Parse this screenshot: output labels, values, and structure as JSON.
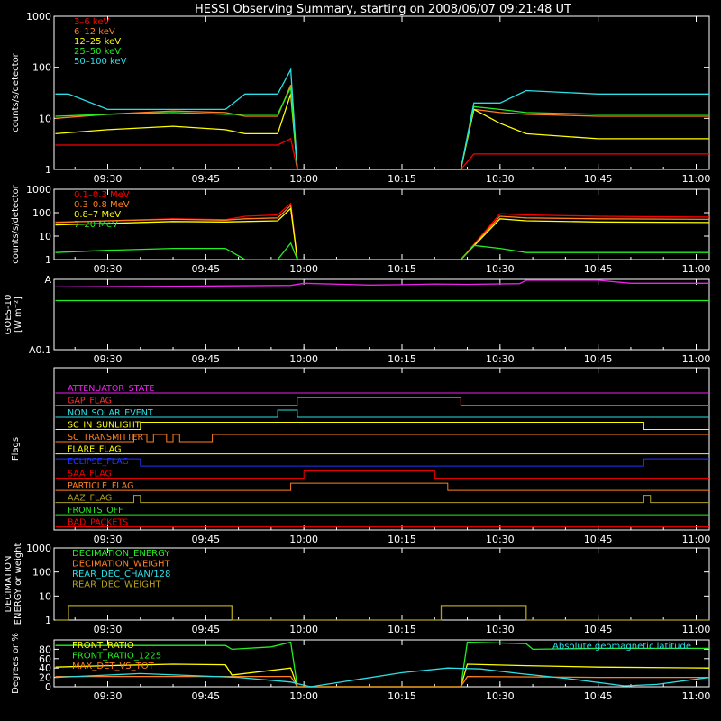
{
  "page_title": "HESSI Observing Summary, starting on 2008/06/07 09:21:48 UT",
  "colors": {
    "background": "#000000",
    "axes": "#ffffff",
    "red": "#ff0000",
    "orange": "#ff7f1f",
    "yellow": "#ffff00",
    "green": "#22ee22",
    "cyan": "#2ae0e6",
    "magenta": "#ee22ee",
    "blue": "#2233ff",
    "olive": "#b0a020",
    "dark_orange": "#e06a10"
  },
  "chart_data": [
    {
      "id": "count_rates_low",
      "type": "line",
      "ylabel": "counts/s/detector",
      "yscale": "log",
      "ylim": [
        1,
        1000
      ],
      "ytick_labels": [
        "1",
        "10",
        "100",
        "1000"
      ],
      "xlim": [
        "09:21:48",
        "11:02:00"
      ],
      "xtick_labels": [
        "09:30",
        "09:45",
        "10:00",
        "10:15",
        "10:30",
        "10:45",
        "11:00"
      ],
      "legend": "top-left",
      "series": [
        {
          "name": "3–6 keV",
          "color": "#ff0000",
          "x": [
            "09:22",
            "09:30",
            "09:40",
            "09:48",
            "09:51",
            "09:56",
            "09:58",
            "09:59",
            "10:24",
            "10:26",
            "10:30",
            "10:34",
            "10:45",
            "11:02"
          ],
          "y": [
            3,
            3,
            3,
            3,
            3,
            3,
            4,
            1,
            1,
            2,
            2,
            2,
            2,
            2
          ]
        },
        {
          "name": "6–12 keV",
          "color": "#ff7f1f",
          "x": [
            "09:22",
            "09:30",
            "09:40",
            "09:48",
            "09:51",
            "09:56",
            "09:58",
            "09:59",
            "10:24",
            "10:26",
            "10:30",
            "10:34",
            "10:45",
            "11:02"
          ],
          "y": [
            10,
            12,
            14,
            13,
            11,
            11,
            45,
            1,
            1,
            15,
            13,
            12,
            11,
            11
          ]
        },
        {
          "name": "12–25 keV",
          "color": "#ffff00",
          "x": [
            "09:22",
            "09:30",
            "09:40",
            "09:48",
            "09:51",
            "09:56",
            "09:58",
            "09:59",
            "10:24",
            "10:26",
            "10:30",
            "10:34",
            "10:45",
            "11:02"
          ],
          "y": [
            5,
            6,
            7,
            6,
            5,
            5,
            30,
            1,
            1,
            15,
            8,
            5,
            4,
            4
          ]
        },
        {
          "name": "25–50 keV",
          "color": "#22ee22",
          "x": [
            "09:22",
            "09:30",
            "09:40",
            "09:48",
            "09:51",
            "09:56",
            "09:58",
            "09:59",
            "10:24",
            "10:26",
            "10:30",
            "10:34",
            "10:45",
            "11:02"
          ],
          "y": [
            11,
            12,
            13,
            12,
            12,
            12,
            40,
            1,
            1,
            17,
            15,
            13,
            12,
            12
          ]
        },
        {
          "name": "50–100 keV",
          "color": "#2ae0e6",
          "x": [
            "09:22",
            "09:24",
            "09:30",
            "09:40",
            "09:48",
            "09:51",
            "09:56",
            "09:58",
            "09:59",
            "10:24",
            "10:26",
            "10:30",
            "10:34",
            "10:45",
            "11:02"
          ],
          "y": [
            30,
            30,
            15,
            15,
            15,
            30,
            30,
            90,
            1,
            1,
            20,
            20,
            35,
            30,
            30
          ]
        }
      ]
    },
    {
      "id": "count_rates_high",
      "type": "line",
      "ylabel": "counts/s/detector",
      "yscale": "log",
      "ylim": [
        1,
        1000
      ],
      "ytick_labels": [
        "1",
        "10",
        "100",
        "1000"
      ],
      "xlim": [
        "09:21:48",
        "11:02:00"
      ],
      "xtick_labels": [
        "09:30",
        "09:45",
        "10:00",
        "10:15",
        "10:30",
        "10:45",
        "11:00"
      ],
      "legend": "top-left",
      "series": [
        {
          "name": "0.1–0.3 MeV",
          "color": "#ff0000",
          "x": [
            "09:22",
            "09:30",
            "09:40",
            "09:48",
            "09:51",
            "09:56",
            "09:58",
            "09:59",
            "10:24",
            "10:30",
            "10:34",
            "10:45",
            "11:02"
          ],
          "y": [
            40,
            45,
            55,
            50,
            70,
            80,
            250,
            1,
            1,
            90,
            80,
            70,
            65
          ]
        },
        {
          "name": "0.3–0.8 MeV",
          "color": "#ff7f1f",
          "x": [
            "09:22",
            "09:30",
            "09:40",
            "09:48",
            "09:51",
            "09:56",
            "09:58",
            "09:59",
            "10:24",
            "10:30",
            "10:34",
            "10:45",
            "11:02"
          ],
          "y": [
            38,
            45,
            52,
            48,
            55,
            60,
            200,
            1,
            1,
            70,
            60,
            55,
            52
          ]
        },
        {
          "name": "0.8–7 MeV",
          "color": "#ffff00",
          "x": [
            "09:22",
            "09:30",
            "09:40",
            "09:48",
            "09:51",
            "09:56",
            "09:58",
            "09:59",
            "10:24",
            "10:30",
            "10:34",
            "10:45",
            "11:02"
          ],
          "y": [
            30,
            35,
            42,
            40,
            42,
            45,
            150,
            1,
            1,
            55,
            45,
            40,
            38
          ]
        },
        {
          "name": "7–20 MeV",
          "color": "#22ee22",
          "x": [
            "09:22",
            "09:30",
            "09:40",
            "09:48",
            "09:51",
            "09:56",
            "09:58",
            "09:59",
            "10:24",
            "10:26",
            "10:30",
            "10:34",
            "10:45",
            "11:02"
          ],
          "y": [
            2,
            2.5,
            3,
            3,
            1,
            1,
            5,
            1,
            1,
            4,
            3,
            2,
            2,
            2
          ]
        }
      ]
    },
    {
      "id": "goes",
      "type": "line",
      "ylabel": "GOES-10",
      "ylabel2": "[W m⁻²]",
      "yscale": "log",
      "ylim": [
        0.1,
        1
      ],
      "ytick_labels": [
        "A0.1",
        "A"
      ],
      "xlim": [
        "09:21:48",
        "11:02:00"
      ],
      "xtick_labels": [
        "09:30",
        "09:45",
        "10:00",
        "10:15",
        "10:30",
        "10:45",
        "11:00"
      ],
      "series": [
        {
          "color": "#ee22ee",
          "x": [
            "09:22",
            "09:40",
            "09:58",
            "10:00",
            "10:10",
            "10:15",
            "10:20",
            "10:25",
            "10:33",
            "10:34",
            "10:45",
            "10:50",
            "11:02"
          ],
          "y": [
            0.78,
            0.8,
            0.82,
            0.88,
            0.83,
            0.84,
            0.86,
            0.85,
            0.87,
            0.97,
            0.97,
            0.88,
            0.88
          ]
        },
        {
          "color": "#22ee22",
          "x": [
            "09:22",
            "11:02"
          ],
          "y": [
            0.5,
            0.5
          ]
        }
      ]
    },
    {
      "id": "flags",
      "type": "line",
      "ylabel": "Flags",
      "xlim": [
        "09:21:48",
        "11:02:00"
      ],
      "xtick_labels": [
        "09:30",
        "09:45",
        "10:00",
        "10:15",
        "10:30",
        "10:45",
        "11:00"
      ],
      "series": [
        {
          "name": "ATTENUATOR_STATE",
          "color": "#ee22ee",
          "x": [
            "09:22",
            "11:02"
          ],
          "y": [
            0,
            0
          ]
        },
        {
          "name": "GAP_FLAG",
          "color": "#ff3030",
          "x": [
            "09:22",
            "09:59",
            "09:59",
            "10:24",
            "10:24",
            "11:02"
          ],
          "y": [
            0,
            0,
            1,
            1,
            0,
            0
          ]
        },
        {
          "name": "NON_SOLAR_EVENT",
          "color": "#2ae0e6",
          "x": [
            "09:22",
            "09:56",
            "09:56",
            "09:59",
            "09:59",
            "11:02"
          ],
          "y": [
            0,
            0,
            1,
            1,
            0,
            0
          ]
        },
        {
          "name": "SC_IN_SUNLIGHT",
          "color": "#ffff00",
          "x": [
            "09:22",
            "09:35",
            "09:35",
            "10:52",
            "10:52",
            "11:02"
          ],
          "y": [
            0,
            0,
            1,
            1,
            0,
            0
          ]
        },
        {
          "name": "SC_TRANSMITTER",
          "color": "#ff7f1f",
          "x": [
            "09:22",
            "09:34",
            "09:34",
            "09:36",
            "09:36",
            "09:37",
            "09:37",
            "09:39",
            "09:39",
            "09:40",
            "09:40",
            "09:41",
            "09:41",
            "09:46",
            "09:46",
            "11:02"
          ],
          "y": [
            0,
            0,
            1,
            1,
            0,
            0,
            1,
            1,
            0,
            0,
            1,
            1,
            0,
            0,
            1,
            1
          ]
        },
        {
          "name": "FLARE_FLAG",
          "color": "#ffff00",
          "x": [
            "09:22",
            "11:02"
          ],
          "y": [
            0,
            0
          ]
        },
        {
          "name": "ECLIPSE_FLAG",
          "color": "#2233ff",
          "x": [
            "09:22",
            "09:35",
            "09:35",
            "10:52",
            "10:52",
            "11:02"
          ],
          "y": [
            1,
            1,
            0,
            0,
            1,
            1
          ]
        },
        {
          "name": "SAA_FLAG",
          "color": "#ff0000",
          "x": [
            "09:22",
            "10:00",
            "10:00",
            "10:20",
            "10:20",
            "11:02"
          ],
          "y": [
            0,
            0,
            1,
            1,
            0,
            0
          ]
        },
        {
          "name": "PARTICLE_FLAG",
          "color": "#ff7f1f",
          "x": [
            "09:22",
            "09:58",
            "09:58",
            "10:22",
            "10:22",
            "11:02"
          ],
          "y": [
            0,
            0,
            1,
            1,
            0,
            0
          ]
        },
        {
          "name": "AAZ_FLAG",
          "color": "#b0a020",
          "x": [
            "09:22",
            "09:34",
            "09:34",
            "09:35",
            "09:35",
            "10:52",
            "10:52",
            "10:53",
            "10:53",
            "11:02"
          ],
          "y": [
            0,
            0,
            1,
            1,
            0,
            0,
            1,
            1,
            0,
            0
          ]
        },
        {
          "name": "FRONTS_OFF",
          "color": "#22ee22",
          "x": [
            "09:22",
            "11:02"
          ],
          "y": [
            0,
            0
          ]
        },
        {
          "name": "BAD_PACKETS",
          "color": "#ff0000",
          "x": [
            "09:22",
            "11:02"
          ],
          "y": [
            0,
            0
          ]
        }
      ]
    },
    {
      "id": "decimation",
      "type": "line",
      "ylabel": "DECIMATION",
      "ylabel2": "ENERGY or weight",
      "yscale": "log",
      "ylim": [
        1,
        1000
      ],
      "ytick_labels": [
        "1",
        "10",
        "100",
        "1000"
      ],
      "xlim": [
        "09:21:48",
        "11:02:00"
      ],
      "xtick_labels": [
        "09:30",
        "09:45",
        "10:00",
        "10:15",
        "10:30",
        "10:45",
        "11:00"
      ],
      "legend": "top-left",
      "series": [
        {
          "name": "DECIMATION_ENERGY",
          "color": "#22ee22",
          "x": [],
          "y": []
        },
        {
          "name": "DECIMATION_WEIGHT",
          "color": "#ff7f1f",
          "x": [],
          "y": []
        },
        {
          "name": "REAR_DEC_CHAN/128",
          "color": "#2ae0e6",
          "x": [],
          "y": []
        },
        {
          "name": "REAR_DEC_WEIGHT",
          "color": "#b0a020",
          "x": [
            "09:22",
            "09:24",
            "09:24",
            "09:49",
            "09:49",
            "10:21",
            "10:21",
            "10:34",
            "10:34",
            "11:02"
          ],
          "y": [
            1,
            1,
            4,
            4,
            1,
            1,
            4,
            4,
            1,
            1
          ]
        }
      ]
    },
    {
      "id": "ratios",
      "type": "line",
      "ylabel": "Degrees or %",
      "ylim": [
        0,
        100
      ],
      "ytick_labels": [
        "0",
        "20",
        "40",
        "60",
        "80"
      ],
      "xlim": [
        "09:21:48",
        "11:02:00"
      ],
      "xtick_labels": [
        "09:30",
        "09:45",
        "10:00",
        "10:15",
        "10:30",
        "10:45",
        "11:00"
      ],
      "legend": "top-left",
      "series": [
        {
          "name": "FRONT_RATIO",
          "color": "#ffff00",
          "x": [
            "09:22",
            "09:30",
            "09:40",
            "09:48",
            "09:49",
            "09:58",
            "09:59",
            "10:24",
            "10:25",
            "10:34",
            "10:45",
            "11:02"
          ],
          "y": [
            42,
            45,
            48,
            47,
            25,
            40,
            0,
            0,
            48,
            45,
            42,
            40
          ]
        },
        {
          "name": "FRONT_RATIO_1225",
          "color": "#22ee22",
          "x": [
            "09:22",
            "09:40",
            "09:48",
            "09:49",
            "09:55",
            "09:58",
            "09:59",
            "10:24",
            "10:25",
            "10:34",
            "10:35",
            "10:45",
            "11:02"
          ],
          "y": [
            88,
            88,
            88,
            80,
            85,
            95,
            0,
            0,
            95,
            92,
            80,
            82,
            82
          ]
        },
        {
          "name": "MAX_DET_VS_TOT",
          "color": "#ff7f1f",
          "x": [
            "09:22",
            "09:40",
            "09:58",
            "09:59",
            "10:24",
            "10:25",
            "10:45",
            "11:02"
          ],
          "y": [
            22,
            22,
            22,
            0,
            0,
            22,
            20,
            20
          ]
        },
        {
          "name": "Absolute geomagnetic latitude",
          "color": "#2ae0e6",
          "x": [
            "09:22",
            "09:35",
            "09:50",
            "09:58",
            "10:01",
            "10:08",
            "10:15",
            "10:22",
            "10:27",
            "10:33",
            "10:40",
            "10:49",
            "10:54",
            "11:02"
          ],
          "y": [
            20,
            28,
            20,
            10,
            0,
            15,
            30,
            40,
            38,
            28,
            18,
            2,
            5,
            20
          ]
        }
      ]
    }
  ]
}
